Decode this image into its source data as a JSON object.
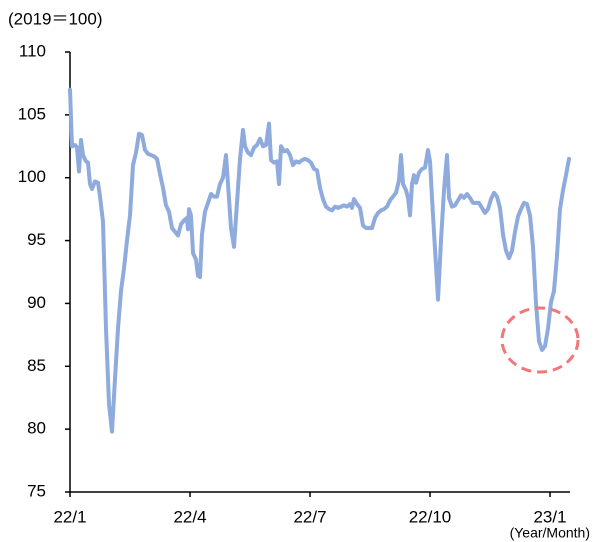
{
  "chart_data": {
    "type": "line",
    "y_label": "(2019＝100)",
    "x_label": "(Year/Month)",
    "xlim": [
      0,
      12.5
    ],
    "xticks": [
      {
        "value": 0,
        "label": "22/1"
      },
      {
        "value": 3,
        "label": "22/4"
      },
      {
        "value": 6,
        "label": "22/7"
      },
      {
        "value": 9,
        "label": "22/10"
      },
      {
        "value": 12,
        "label": "23/1"
      }
    ],
    "ylim": [
      75,
      110
    ],
    "yticks": [
      75,
      80,
      85,
      90,
      95,
      100,
      105,
      110
    ],
    "grid": false,
    "series": [
      {
        "color": "#8faadc",
        "x": [
          0,
          0.05,
          0.125,
          0.175,
          0.225,
          0.275,
          0.325,
          0.4,
          0.45,
          0.5,
          0.55,
          0.625,
          0.7,
          0.75,
          0.825,
          0.9,
          0.975,
          1.05,
          1.125,
          1.2,
          1.275,
          1.35,
          1.425,
          1.5,
          1.575,
          1.65,
          1.725,
          1.8,
          1.875,
          1.95,
          2.025,
          2.1,
          2.175,
          2.25,
          2.325,
          2.4,
          2.475,
          2.55,
          2.625,
          2.7,
          2.775,
          2.85,
          2.925,
          2.95,
          2.975,
          3.025,
          3.075,
          3.15,
          3.2,
          3.25,
          3.3,
          3.375,
          3.45,
          3.525,
          3.6,
          3.675,
          3.75,
          3.825,
          3.9,
          3.95,
          4.025,
          4.1,
          4.175,
          4.25,
          4.325,
          4.375,
          4.45,
          4.525,
          4.6,
          4.675,
          4.75,
          4.825,
          4.9,
          4.975,
          5.025,
          5.1,
          5.175,
          5.225,
          5.275,
          5.35,
          5.425,
          5.5,
          5.575,
          5.65,
          5.725,
          5.8,
          5.875,
          5.95,
          6.025,
          6.1,
          6.175,
          6.25,
          6.325,
          6.4,
          6.475,
          6.55,
          6.625,
          6.7,
          6.775,
          6.85,
          6.925,
          7,
          7.05,
          7.1,
          7.175,
          7.25,
          7.325,
          7.4,
          7.475,
          7.55,
          7.625,
          7.7,
          7.775,
          7.85,
          7.925,
          8,
          8.075,
          8.15,
          8.225,
          8.275,
          8.325,
          8.4,
          8.45,
          8.5,
          8.55,
          8.6,
          8.65,
          8.725,
          8.8,
          8.875,
          8.95,
          9,
          9.075,
          9.15,
          9.2,
          9.275,
          9.35,
          9.425,
          9.475,
          9.55,
          9.625,
          9.7,
          9.775,
          9.85,
          9.925,
          10,
          10.075,
          10.15,
          10.225,
          10.3,
          10.375,
          10.45,
          10.525,
          10.6,
          10.675,
          10.75,
          10.825,
          10.9,
          10.975,
          11.05,
          11.125,
          11.2,
          11.275,
          11.35,
          11.425,
          11.5,
          11.575,
          11.65,
          11.725,
          11.8,
          11.875,
          11.95,
          12.025,
          12.1,
          12.175,
          12.25,
          12.325,
          12.4,
          12.475
        ],
        "values": [
          107,
          102.5,
          102.6,
          102.4,
          100.5,
          103,
          101.8,
          101.3,
          101.2,
          99.5,
          99.1,
          99.7,
          99.6,
          98.5,
          96.5,
          88,
          82,
          79.8,
          84,
          88,
          91,
          92.8,
          95,
          97,
          101,
          102,
          103.5,
          103.4,
          102.2,
          101.9,
          101.8,
          101.7,
          101.5,
          100.3,
          99.2,
          97.8,
          97.3,
          96,
          95.7,
          95.4,
          96.3,
          96.6,
          96.8,
          95.9,
          97.5,
          97,
          94,
          93.5,
          92.2,
          92.1,
          95.5,
          97.3,
          98,
          98.7,
          98.5,
          98.5,
          99.5,
          100,
          101.8,
          99.5,
          96,
          94.5,
          98,
          101.5,
          103.8,
          102.5,
          102,
          101.8,
          102.4,
          102.6,
          103.1,
          102.5,
          102.6,
          104.3,
          101.4,
          101.2,
          101.3,
          99.5,
          102.5,
          102.1,
          102.2,
          101.8,
          101,
          101.3,
          101.2,
          101.4,
          101.5,
          101.4,
          101.2,
          100.7,
          100.6,
          99.2,
          98.3,
          97.7,
          97.5,
          97.4,
          97.7,
          97.6,
          97.7,
          97.8,
          97.7,
          97.9,
          97.6,
          98.3,
          97.9,
          97.6,
          96.2,
          96,
          96,
          96,
          96.8,
          97.2,
          97.4,
          97.5,
          97.7,
          98.2,
          98.5,
          98.8,
          99.8,
          101.8,
          99.5,
          99,
          98.4,
          97,
          99.5,
          100.2,
          99.6,
          100.4,
          100.7,
          100.8,
          102.2,
          101.3,
          97,
          93,
          90.3,
          95,
          99,
          101.8,
          98.4,
          97.7,
          97.8,
          98.2,
          98.6,
          98.4,
          98.7,
          98.4,
          98,
          98,
          98,
          97.6,
          97.2,
          97.5,
          98.3,
          98.8,
          98.5,
          97.6,
          95.5,
          94.2,
          93.6,
          94.2,
          95.7,
          96.9,
          97.5,
          98,
          97.9,
          97,
          94.5,
          90,
          87,
          86.3,
          86.6,
          88,
          90.1,
          91,
          93.8,
          97.5,
          99,
          100.2,
          101.5
        ]
      }
    ]
  }
}
